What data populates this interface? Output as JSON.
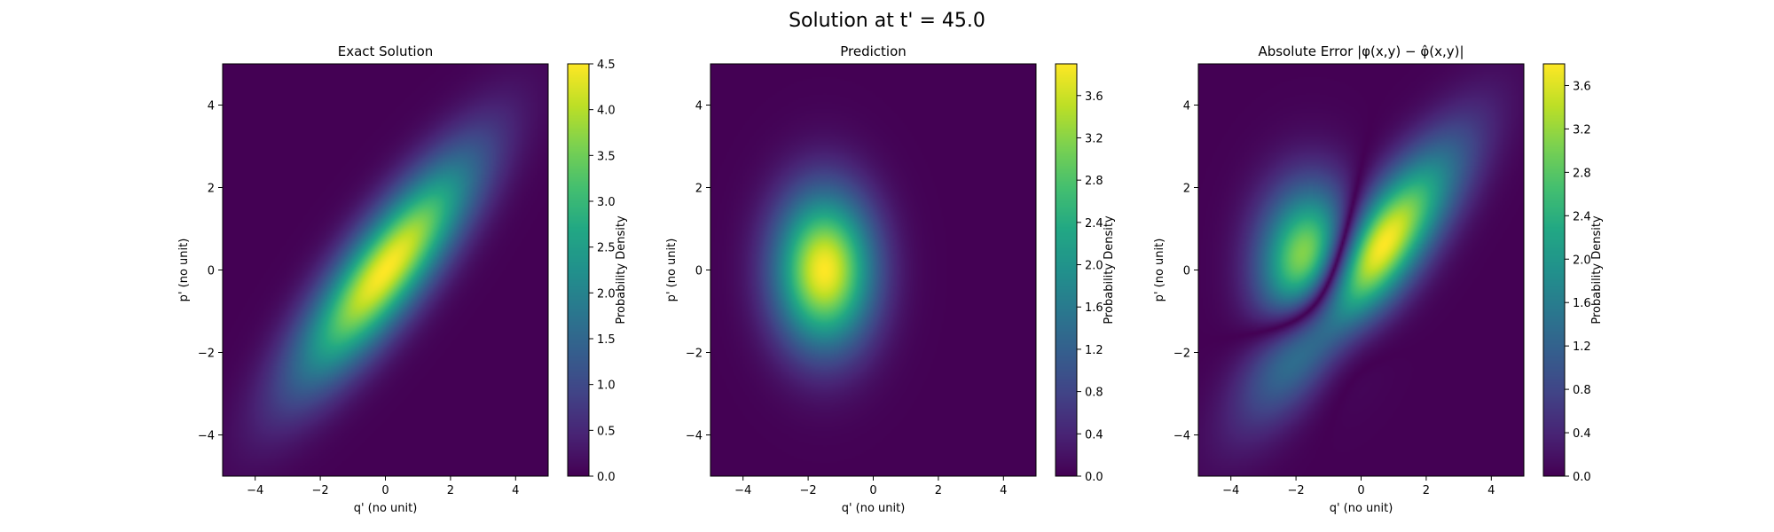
{
  "figure": {
    "suptitle": "Solution at t' = 45.0"
  },
  "chart_data": [
    {
      "type": "heatmap",
      "title": "Exact Solution",
      "xlabel": "q' (no unit)",
      "ylabel": "p' (no unit)",
      "xlim": [
        -5,
        5
      ],
      "ylim": [
        -5,
        5
      ],
      "xticks": [
        -4,
        -2,
        0,
        2,
        4
      ],
      "yticks": [
        -4,
        -2,
        0,
        2,
        4
      ],
      "colormap": "viridis",
      "colorbar": {
        "label": "Probability Density",
        "range": [
          0.0,
          4.5
        ],
        "ticks": [
          "0.0",
          "0.5",
          "1.0",
          "1.5",
          "2.0",
          "2.5",
          "3.0",
          "3.5",
          "4.0",
          "4.5"
        ]
      },
      "peak": {
        "center": [
          0,
          0
        ],
        "value": 4.5,
        "shape": "elongated Gaussian tilted along q' = p'"
      }
    },
    {
      "type": "heatmap",
      "title": "Prediction",
      "xlabel": "q' (no unit)",
      "ylabel": "p' (no unit)",
      "xlim": [
        -5,
        5
      ],
      "ylim": [
        -5,
        5
      ],
      "xticks": [
        -4,
        -2,
        0,
        2,
        4
      ],
      "yticks": [
        -4,
        -2,
        0,
        2,
        4
      ],
      "colormap": "viridis",
      "colorbar": {
        "label": "Probability Density",
        "range": [
          0.0,
          3.9
        ],
        "ticks": [
          "0.0",
          "0.4",
          "0.8",
          "1.2",
          "1.6",
          "2.0",
          "2.4",
          "2.8",
          "3.2",
          "3.6"
        ]
      },
      "peak": {
        "center": [
          -1.5,
          0
        ],
        "value": 3.9,
        "shape": "Gaussian, slightly taller than wide"
      }
    },
    {
      "type": "heatmap",
      "title": "Absolute Error |φ(x,y) − φ̂(x,y)|",
      "xlabel": "q' (no unit)",
      "ylabel": "p' (no unit)",
      "xlim": [
        -5,
        5
      ],
      "ylim": [
        -5,
        5
      ],
      "xticks": [
        -4,
        -2,
        0,
        2,
        4
      ],
      "yticks": [
        -4,
        -2,
        0,
        2,
        4
      ],
      "colormap": "viridis",
      "colorbar": {
        "label": "Probability Density",
        "range": [
          0.0,
          3.8
        ],
        "ticks": [
          "0.0",
          "0.4",
          "0.8",
          "1.2",
          "1.6",
          "2.0",
          "2.4",
          "2.8",
          "3.2",
          "3.6"
        ]
      },
      "peak": {
        "center": [
          1,
          0.5
        ],
        "value": 3.8,
        "shape": "|exact − prediction|"
      }
    }
  ]
}
